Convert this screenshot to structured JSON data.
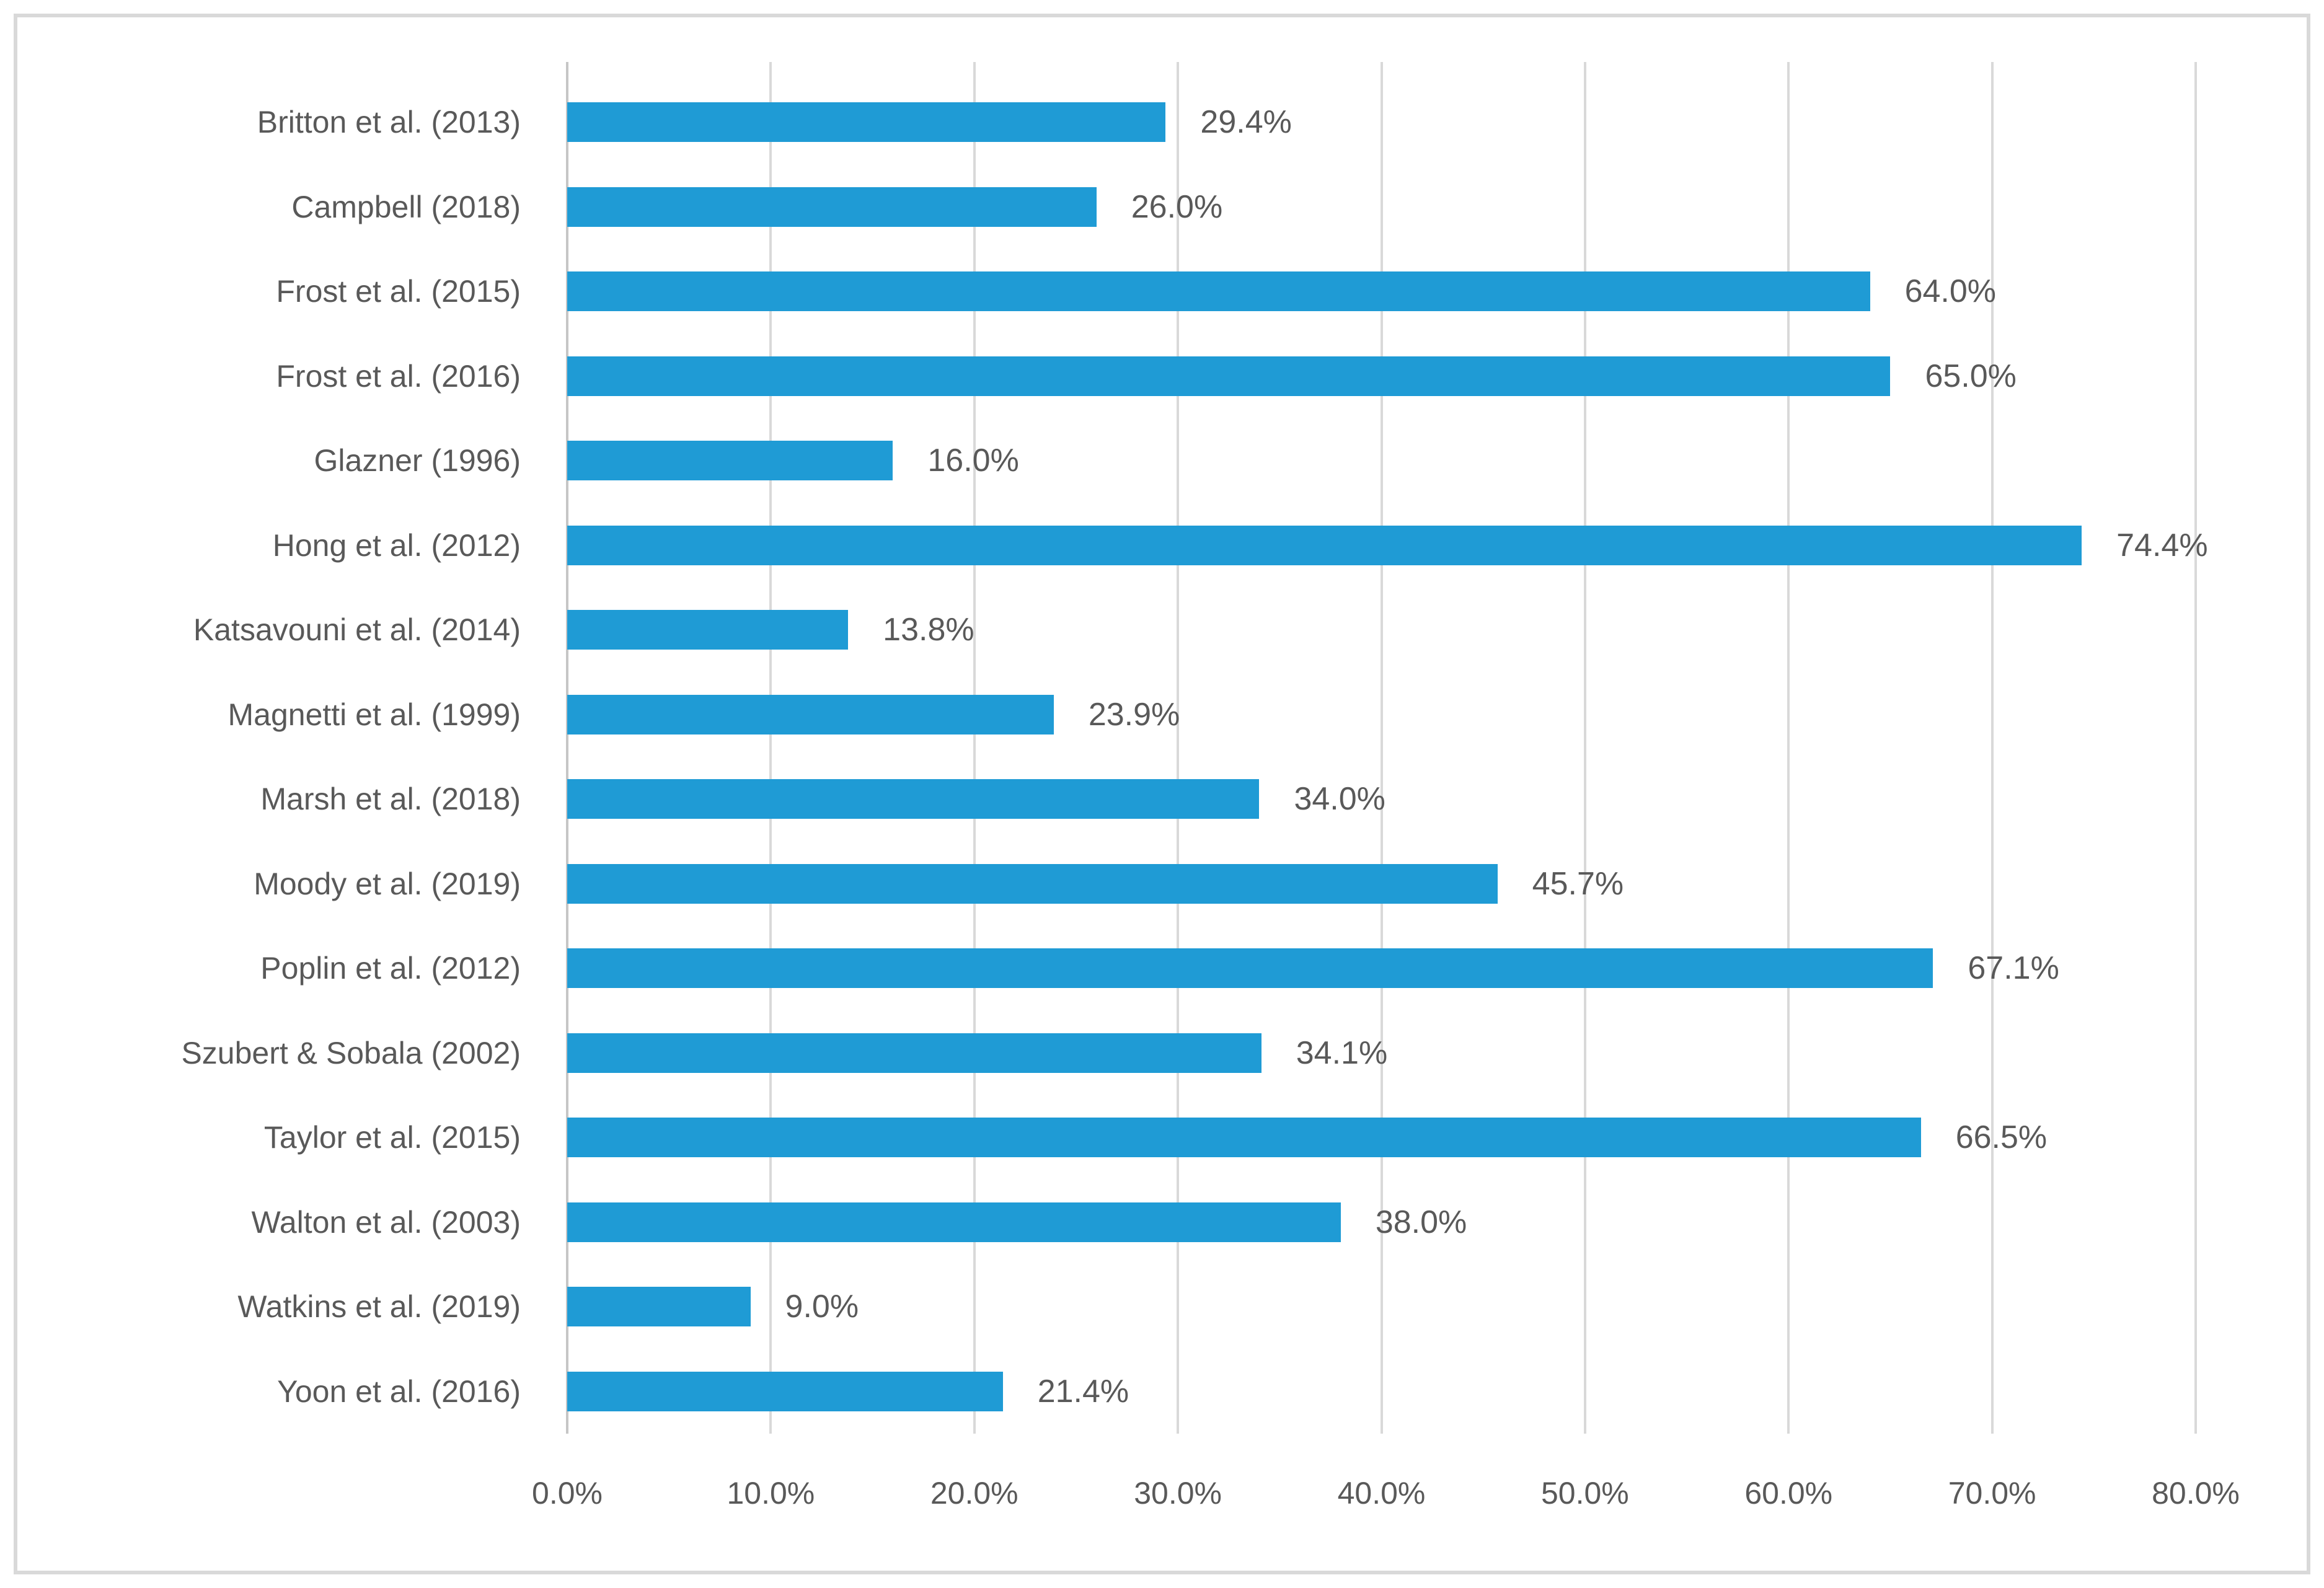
{
  "chart_data": {
    "type": "bar",
    "orientation": "horizontal",
    "title": "",
    "xlabel": "",
    "ylabel": "",
    "categories": [
      "Britton et al. (2013)",
      "Campbell (2018)",
      "Frost et al. (2015)",
      "Frost et al. (2016)",
      "Glazner (1996)",
      "Hong et al. (2012)",
      "Katsavouni et al. (2014)",
      "Magnetti et al. (1999)",
      "Marsh et al. (2018)",
      "Moody et al. (2019)",
      "Poplin et al. (2012)",
      "Szubert & Sobala (2002)",
      "Taylor et al. (2015)",
      "Walton et al. (2003)",
      "Watkins et al. (2019)",
      "Yoon et al. (2016)"
    ],
    "values": [
      29.4,
      26.0,
      64.0,
      65.0,
      16.0,
      74.4,
      13.8,
      23.9,
      34.0,
      45.7,
      67.1,
      34.1,
      66.5,
      38.0,
      9.0,
      21.4
    ],
    "data_labels": [
      "29.4%",
      "26.0%",
      "64.0%",
      "65.0%",
      "16.0%",
      "74.4%",
      "13.8%",
      "23.9%",
      "34.0%",
      "45.7%",
      "67.1%",
      "34.1%",
      "66.5%",
      "38.0%",
      "9.0%",
      "21.4%"
    ],
    "x_ticks": [
      "0.0%",
      "10.0%",
      "20.0%",
      "30.0%",
      "40.0%",
      "50.0%",
      "60.0%",
      "70.0%",
      "80.0%"
    ],
    "xlim": [
      0,
      80
    ],
    "grid": true,
    "legend": false,
    "colors": {
      "bar": "#1f9bd5",
      "text": "#595959",
      "gridline": "#d9d9d9",
      "axis_line": "#c6c6c6",
      "figure_border": "#d9d9d9",
      "background": "#ffffff"
    }
  }
}
